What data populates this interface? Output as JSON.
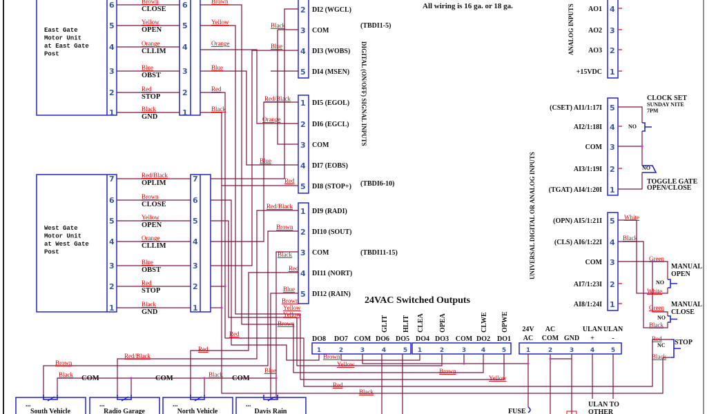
{
  "note": "All wiring is 16 ga. or 18 ga.",
  "colors": {
    "wire": "#7a1040",
    "wire_label": "#e00000",
    "terminal": "#2222cc",
    "pin_number": "#3a55a8"
  },
  "east_gate": {
    "title_lines": [
      "East Gate",
      "Motor Unit",
      "at East Gate",
      "Post"
    ],
    "pins": [
      {
        "n": "6",
        "color": "Brown",
        "fn": "CLOSE"
      },
      {
        "n": "5",
        "color": "Yellow",
        "fn": "OPEN"
      },
      {
        "n": "4",
        "color": "Orange",
        "fn": "CLLIM"
      },
      {
        "n": "3",
        "color": "Blue",
        "fn": "OBST"
      },
      {
        "n": "2",
        "color": "Red",
        "fn": "STOP"
      },
      {
        "n": "1",
        "color": "Black",
        "fn": "GND"
      }
    ],
    "out_colors": [
      "Brown",
      "Yellow",
      "Orange",
      "Blue",
      "Red",
      "Black"
    ]
  },
  "west_gate": {
    "title_lines": [
      "West Gate",
      "Motor Unit",
      "at West Gate",
      "Post"
    ],
    "pins": [
      {
        "n": "7",
        "color": "Red/Black",
        "fn": "OPLIM"
      },
      {
        "n": "6",
        "color": "Brown",
        "fn": "CLOSE"
      },
      {
        "n": "5",
        "color": "Yellow",
        "fn": "OPEN"
      },
      {
        "n": "4",
        "color": "Orange",
        "fn": "CLLIM"
      },
      {
        "n": "3",
        "color": "Blue",
        "fn": "OBST"
      },
      {
        "n": "2",
        "color": "Red",
        "fn": "STOP"
      },
      {
        "n": "1",
        "color": "Black",
        "fn": "GND"
      }
    ]
  },
  "di_section_label": "DIGITAL (ON/OFF) SIGNAL INPUTS",
  "di_blocks": [
    {
      "tag": "(TBDI1-5)",
      "pins": [
        {
          "n": "2",
          "label": "DI2 (WGCL)"
        },
        {
          "n": "3",
          "label": "COM"
        },
        {
          "n": "4",
          "label": "DI3 (WOBS)"
        },
        {
          "n": "5",
          "label": "DI4 (MSEN)"
        }
      ]
    },
    {
      "tag": "(TBDI6-10)",
      "pins": [
        {
          "n": "1",
          "label": "DI5 (EGOL)"
        },
        {
          "n": "2",
          "label": "DI6 (EGCL)"
        },
        {
          "n": "3",
          "label": "COM"
        },
        {
          "n": "4",
          "label": "DI7 (EOBS)"
        },
        {
          "n": "5",
          "label": "DI8 (STOP+)"
        }
      ]
    },
    {
      "tag": "(TBDI11-15)",
      "pins": [
        {
          "n": "1",
          "label": "DI9 (RADI)"
        },
        {
          "n": "2",
          "label": "DI10 (SOUT)"
        },
        {
          "n": "3",
          "label": "COM"
        },
        {
          "n": "4",
          "label": "DI11 (NORT)"
        },
        {
          "n": "5",
          "label": "DI12 (RAIN)"
        }
      ]
    }
  ],
  "ao": {
    "section_label": "ANALOG INPUTS",
    "pins": [
      {
        "n": "4",
        "label": "AO1"
      },
      {
        "n": "3",
        "label": "AO2"
      },
      {
        "n": "2",
        "label": "AO3"
      },
      {
        "n": "1",
        "label": "+15VDC"
      }
    ]
  },
  "universal_label": "UNIVERSAL DIGITAL OR ANALOG INPUTS",
  "ai_blocks": [
    {
      "pins": [
        {
          "n": "5",
          "label": "(CSET) AI1/1:17I"
        },
        {
          "n": "4",
          "label": "AI2/1:18I"
        },
        {
          "n": "3",
          "label": "COM"
        },
        {
          "n": "2",
          "label": "AI3/1:19I"
        },
        {
          "n": "1",
          "label": "(TGAT) AI4/1:20I"
        }
      ]
    },
    {
      "pins": [
        {
          "n": "5",
          "label": "(OPN) AI5/1:21I"
        },
        {
          "n": "4",
          "label": "(CLS) AI6/1:22I"
        },
        {
          "n": "3",
          "label": "COM"
        },
        {
          "n": "2",
          "label": "AI7/1:23I"
        },
        {
          "n": "1",
          "label": "AI8/1:24I"
        }
      ]
    }
  ],
  "switches": {
    "clock_set": [
      "CLOCK SET",
      "SUNDAY NITE",
      "7PM"
    ],
    "toggle_gate": [
      "TOGGLE GATE",
      "OPEN/CLOSE"
    ],
    "manual_open": [
      "MANUAL",
      "OPEN"
    ],
    "manual_close": [
      "MANUAL",
      "CLOSE"
    ],
    "stop": "STOP",
    "contact_labels": [
      "NO",
      "NO",
      "NO",
      "NO",
      "NC"
    ]
  },
  "outputs": {
    "title": "24VAC Switched Outputs",
    "blocks": [
      {
        "pins": [
          {
            "n": "1",
            "label": "DO8",
            "func": ""
          },
          {
            "n": "2",
            "label": "DO7",
            "func": ""
          },
          {
            "n": "3",
            "label": "COM",
            "func": ""
          },
          {
            "n": "4",
            "label": "DO6",
            "func": "GLIT"
          },
          {
            "n": "5",
            "label": "DO5",
            "func": "HLIT"
          }
        ]
      },
      {
        "pins": [
          {
            "n": "1",
            "label": "DO4",
            "func": "CLEA"
          },
          {
            "n": "2",
            "label": "DO3",
            "func": "OPEA"
          },
          {
            "n": "3",
            "label": "COM",
            "func": ""
          },
          {
            "n": "4",
            "label": "DO2",
            "func": "CLWE"
          },
          {
            "n": "5",
            "label": "DO1",
            "func": "OPWE"
          }
        ]
      }
    ],
    "power": {
      "pins": [
        {
          "n": "1",
          "label": [
            "24V",
            "AC"
          ]
        },
        {
          "n": "2",
          "label": [
            "AC",
            "COM"
          ]
        },
        {
          "n": "3",
          "label": [
            "",
            "GND"
          ]
        },
        {
          "n": "4",
          "label": [
            "ULAN",
            "+"
          ]
        },
        {
          "n": "5",
          "label": [
            "ULAN",
            "-"
          ]
        }
      ]
    }
  },
  "devices": [
    {
      "dots": "...",
      "name": "South Vehicle"
    },
    {
      "dots": "...",
      "name": "Radio Garage"
    },
    {
      "dots": "...",
      "name": "North Vehicle"
    },
    {
      "dots": "...",
      "name": "Davis Rain"
    }
  ],
  "com_labels": [
    "COM",
    "COM",
    "COM"
  ],
  "fuse": "FUSE",
  "ulan_other": [
    "ULAN TO",
    "OTHER"
  ],
  "wire_labels": [
    "Black",
    "Blue",
    "Red/Black",
    "Orange",
    "Blue",
    "Red",
    "Red/Black",
    "Brown",
    "Black",
    "Red",
    "Blue",
    "Brown",
    "Yellow",
    "Yellow",
    "Brown",
    "Red",
    "Red",
    "Red/Black",
    "Brown",
    "Black",
    "Black",
    "Blue",
    "Brown",
    "Yellow",
    "Brown",
    "Yellow",
    "Red",
    "Black",
    "White",
    "Black",
    "Green",
    "White",
    "Green",
    "Black",
    "Red",
    "Black"
  ]
}
